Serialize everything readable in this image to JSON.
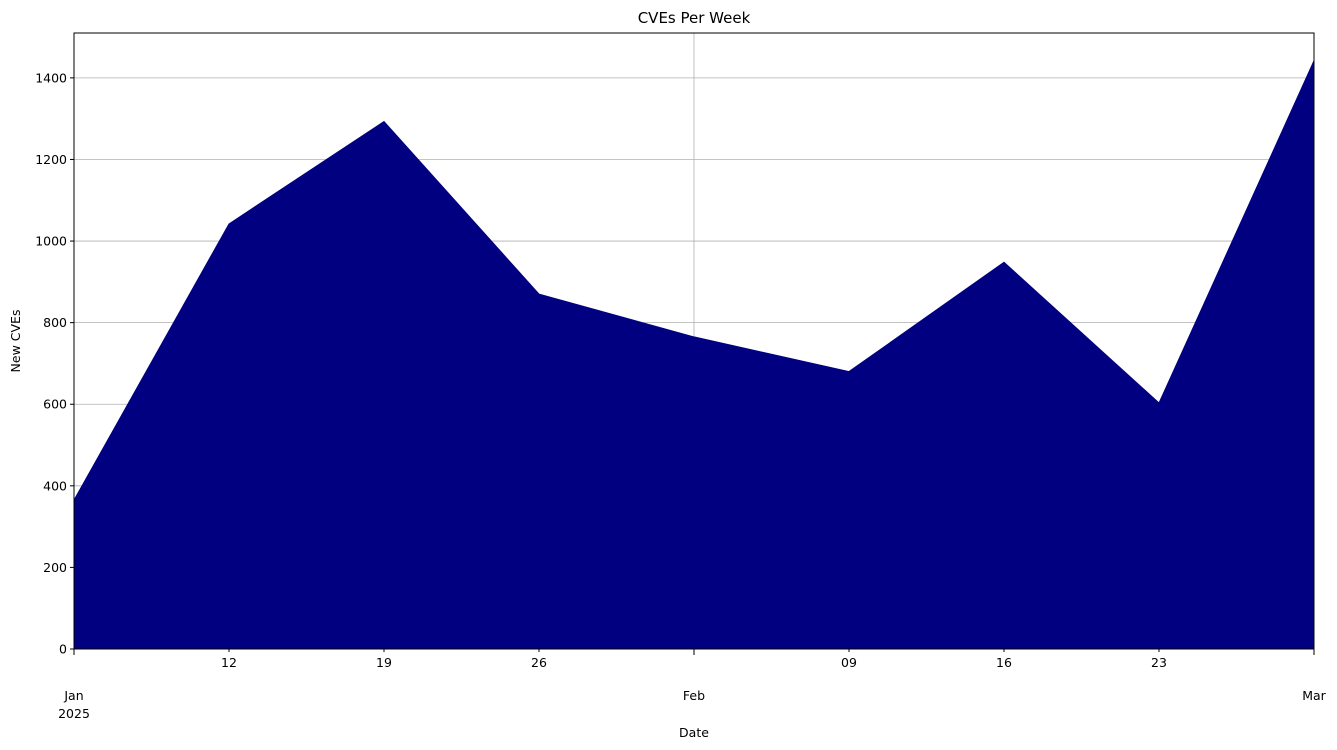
{
  "chart_data": {
    "type": "area",
    "title": "CVEs Per Week",
    "xlabel": "Date",
    "ylabel": "New CVEs",
    "x": [
      "2025-01-05",
      "2025-01-12",
      "2025-01-19",
      "2025-01-26",
      "2025-02-02",
      "2025-02-09",
      "2025-02-16",
      "2025-02-23",
      "2025-03-02"
    ],
    "series": [
      {
        "values": [
          365,
          1042,
          1293,
          870,
          765,
          680,
          948,
          603,
          1442
        ]
      }
    ],
    "xlim": [
      "2025-01-05",
      "2025-03-02"
    ],
    "ylim": [
      0,
      1510
    ],
    "yticks": [
      0,
      200,
      400,
      600,
      800,
      1000,
      1200,
      1400
    ],
    "xticks_minor": [
      {
        "date": "2025-01-12",
        "label": "12"
      },
      {
        "date": "2025-01-19",
        "label": "19"
      },
      {
        "date": "2025-01-26",
        "label": "26"
      },
      {
        "date": "2025-02-09",
        "label": "09"
      },
      {
        "date": "2025-02-16",
        "label": "16"
      },
      {
        "date": "2025-02-23",
        "label": "23"
      }
    ],
    "xticks_major": [
      {
        "date": "2025-01-05",
        "label": "Jan",
        "sublabel": "2025"
      },
      {
        "date": "2025-02-02",
        "label": "Feb",
        "sublabel": ""
      },
      {
        "date": "2025-03-02",
        "label": "Mar",
        "sublabel": ""
      }
    ],
    "grid": true,
    "fill_color": "#000080",
    "grid_color": "#b0b0b0"
  }
}
